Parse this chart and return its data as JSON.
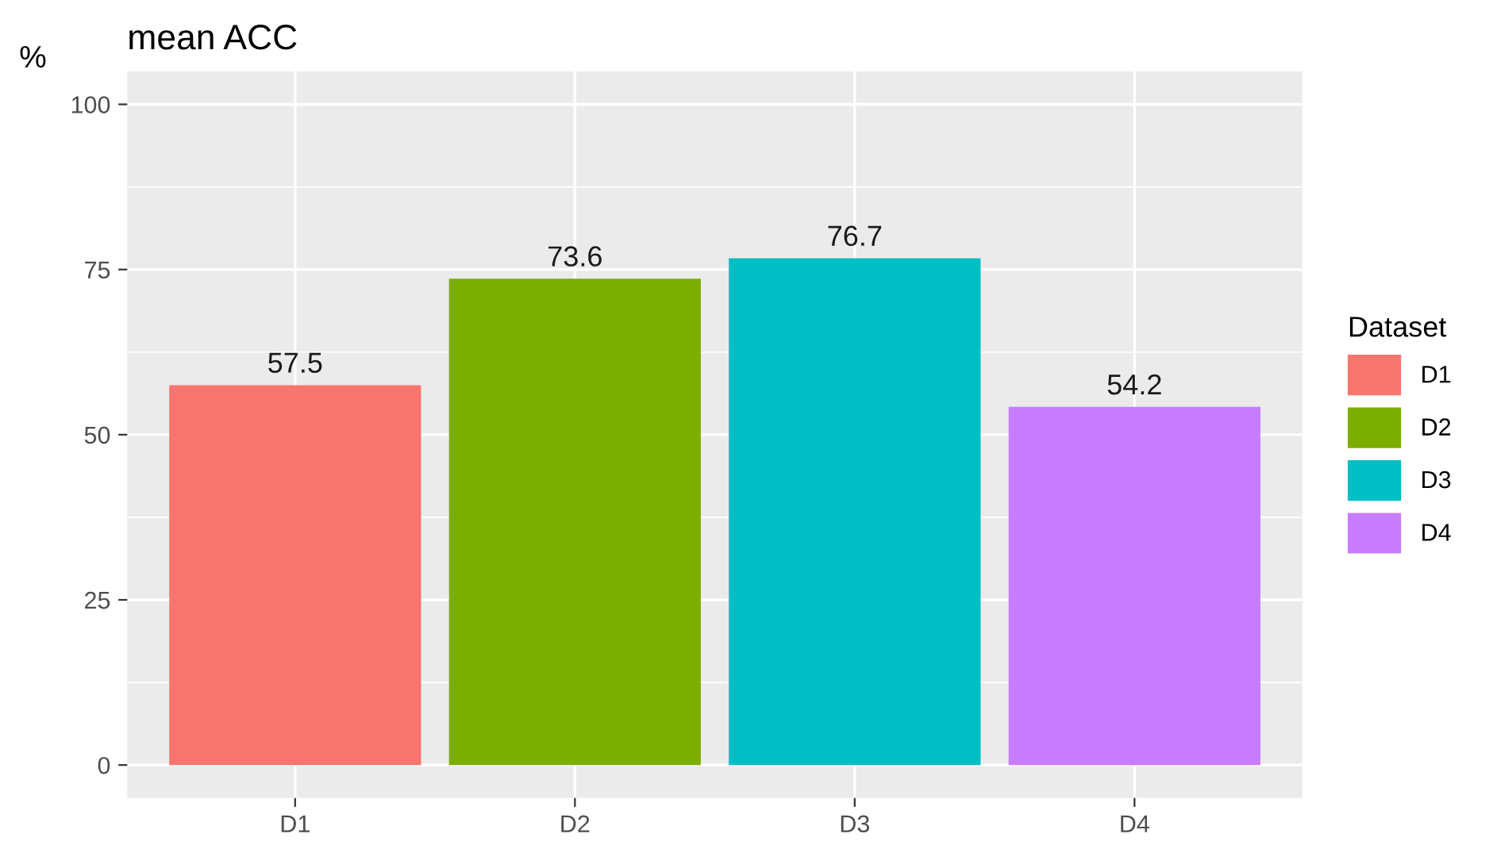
{
  "chart_data": {
    "type": "bar",
    "title": "mean ACC",
    "ylabel": "%",
    "legend_title": "Dataset",
    "categories": [
      "D1",
      "D2",
      "D3",
      "D4"
    ],
    "series": [
      {
        "name": "D1",
        "color": "#f8766d",
        "values": [
          57.5,
          null,
          null,
          null
        ]
      },
      {
        "name": "D2",
        "color": "#7cae00",
        "values": [
          null,
          73.6,
          null,
          null
        ]
      },
      {
        "name": "D3",
        "color": "#00bfc4",
        "values": [
          null,
          null,
          76.7,
          null
        ]
      },
      {
        "name": "D4",
        "color": "#c77cff",
        "values": [
          null,
          null,
          null,
          54.2
        ]
      }
    ],
    "ylim": [
      -5,
      105
    ],
    "yticks": [
      0,
      25,
      50,
      75,
      100
    ],
    "grid": true,
    "legend": "right",
    "data_labels": true
  }
}
